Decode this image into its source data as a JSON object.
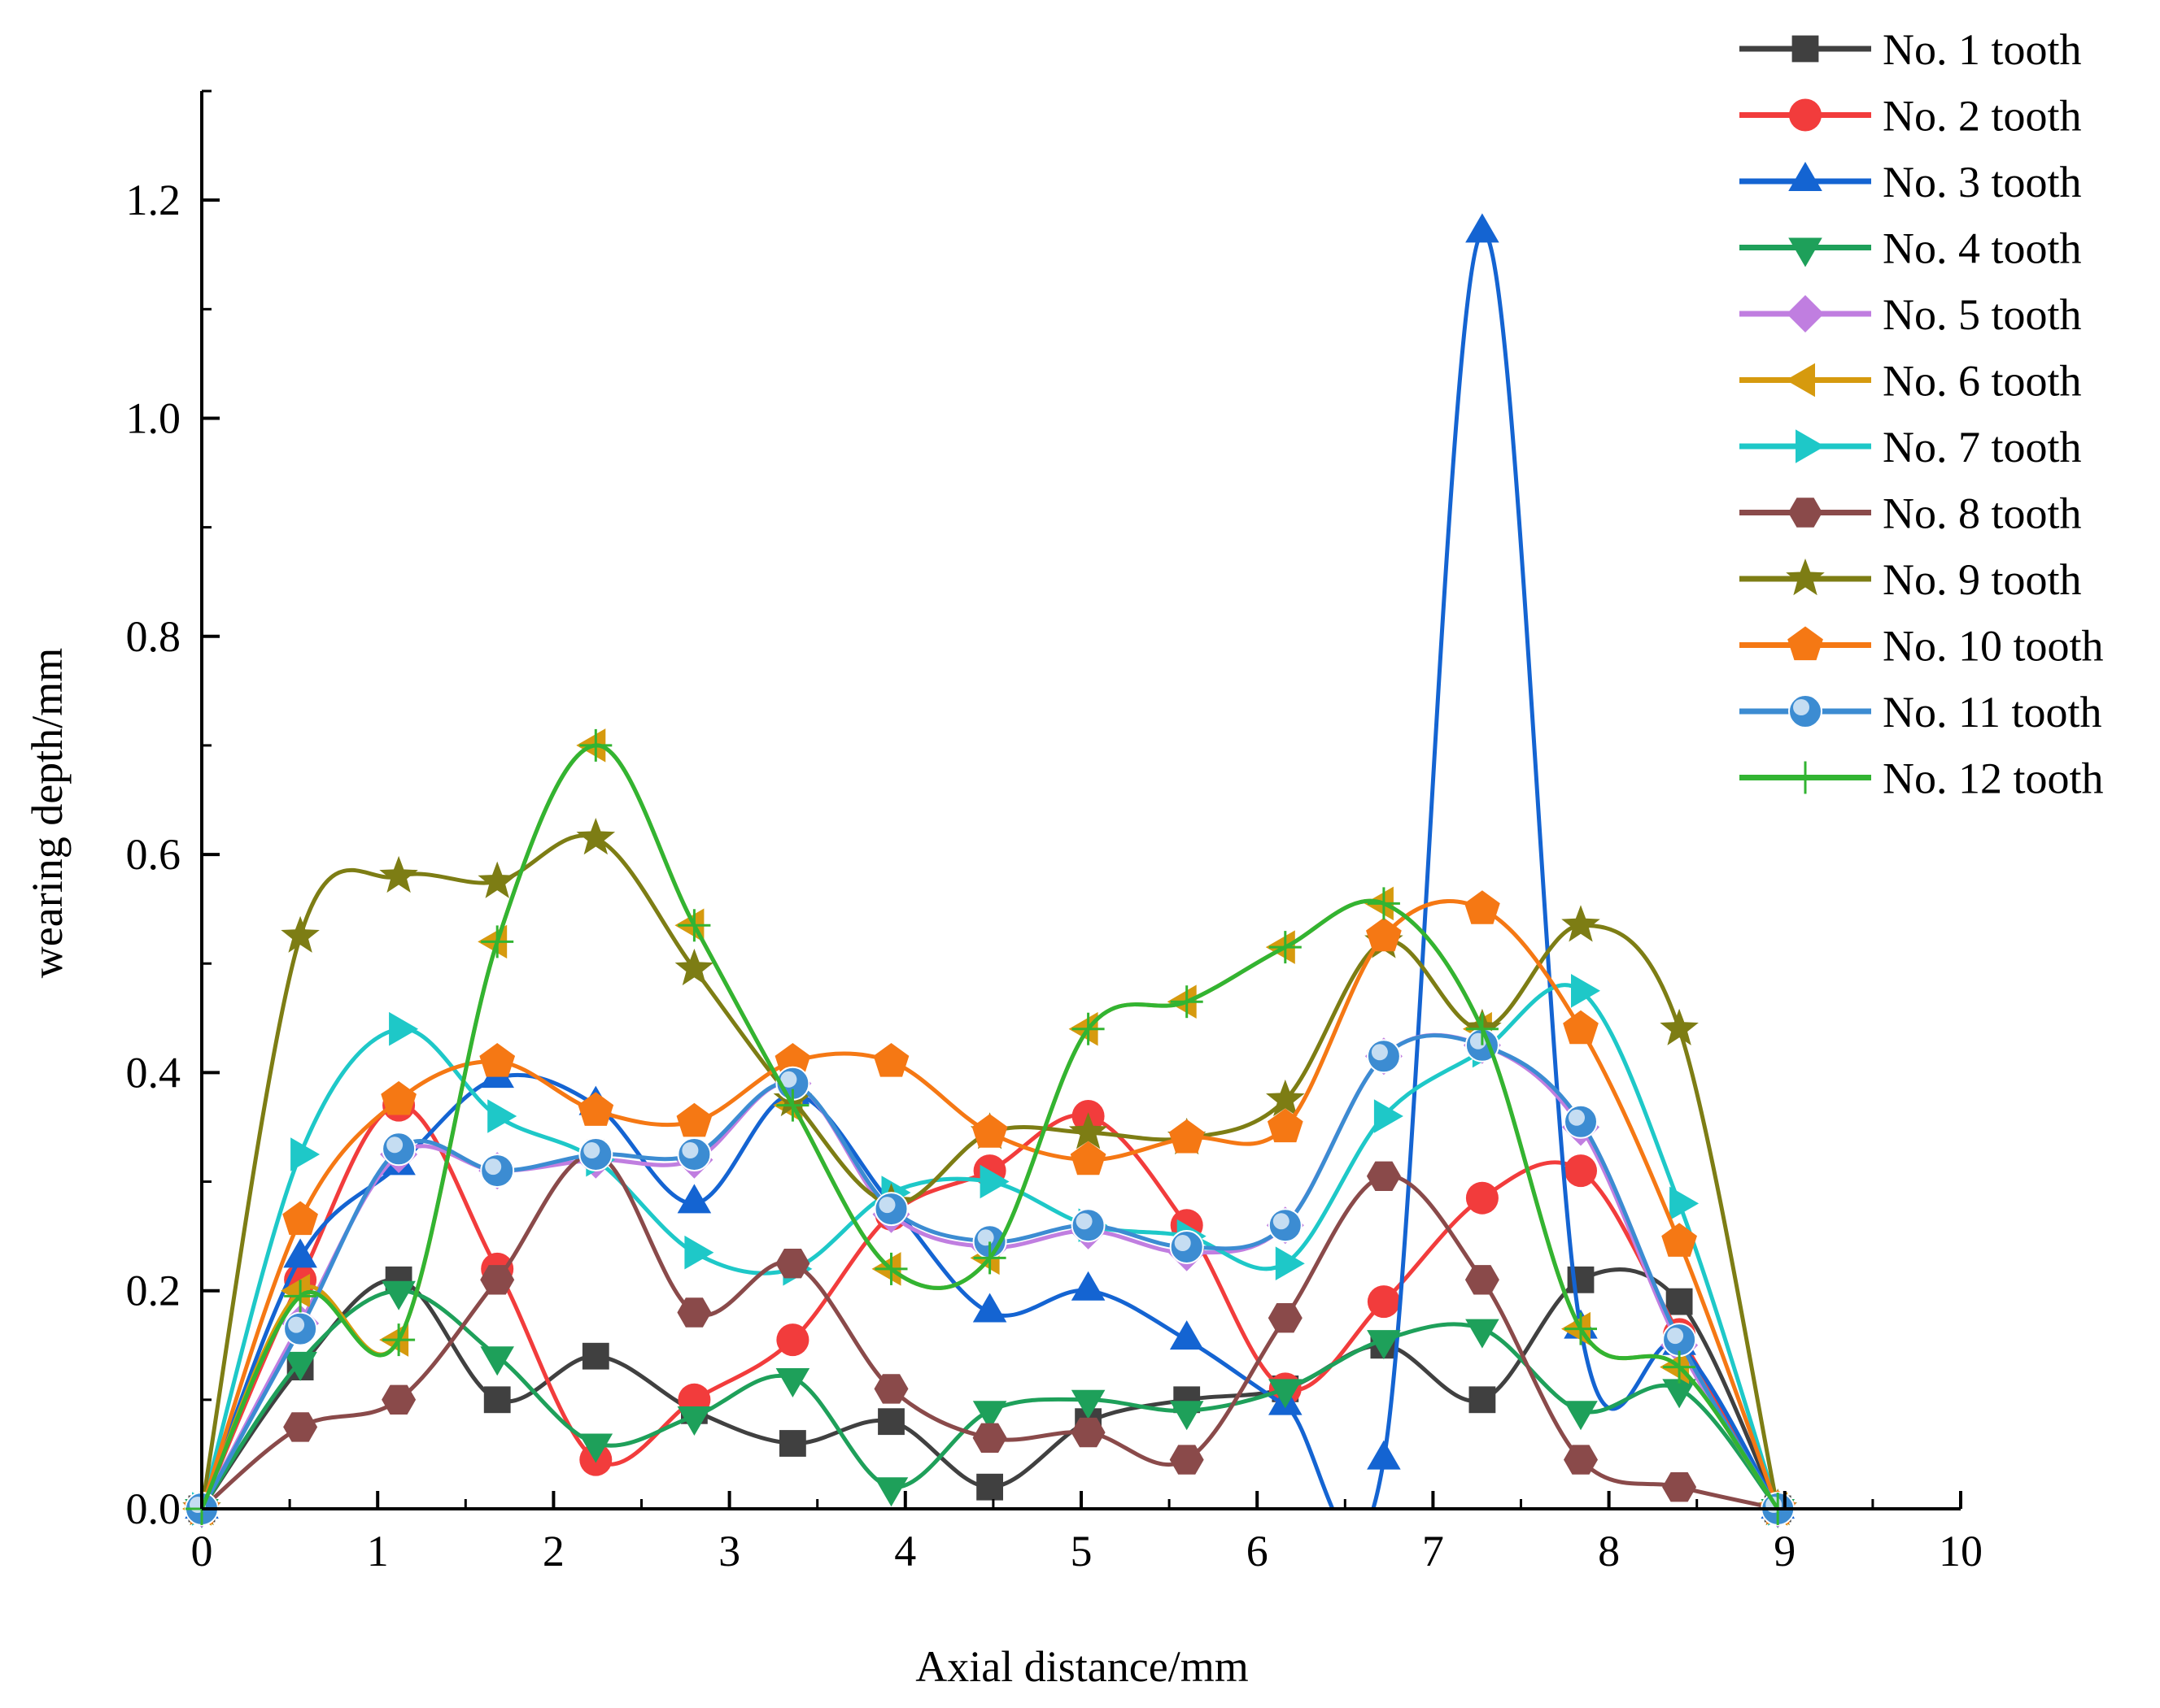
{
  "chart_data": {
    "type": "line",
    "xlabel": "Axial distance/mm",
    "ylabel": "wearing depth/mm",
    "xlim": [
      0,
      10
    ],
    "ylim": [
      0,
      1.3
    ],
    "xticks": [
      "0",
      "1",
      "2",
      "3",
      "4",
      "5",
      "6",
      "7",
      "8",
      "9",
      "10"
    ],
    "yticks": [
      "0.0",
      "0.2",
      "0.4",
      "0.6",
      "0.8",
      "1.0",
      "1.2"
    ],
    "x": [
      0,
      0.56,
      1.12,
      1.68,
      2.24,
      2.8,
      3.36,
      3.92,
      4.48,
      5.04,
      5.6,
      6.16,
      6.72,
      7.28,
      7.84,
      8.4,
      8.96
    ],
    "legend_position": "top-right",
    "series": [
      {
        "name": "No. 1 tooth",
        "color": "#404040",
        "marker": "square",
        "values": [
          0,
          0.13,
          0.21,
          0.1,
          0.14,
          0.09,
          0.06,
          0.08,
          0.02,
          0.08,
          0.1,
          0.11,
          0.15,
          0.1,
          0.21,
          0.19,
          0
        ]
      },
      {
        "name": "No. 2 tooth",
        "color": "#f23c3c",
        "marker": "circle",
        "values": [
          0,
          0.21,
          0.37,
          0.22,
          0.045,
          0.1,
          0.155,
          0.27,
          0.31,
          0.36,
          0.26,
          0.11,
          0.19,
          0.285,
          0.31,
          0.16,
          0
        ]
      },
      {
        "name": "No. 3 tooth",
        "color": "#1464d2",
        "marker": "triangle-up",
        "values": [
          0,
          0.23,
          0.315,
          0.395,
          0.37,
          0.28,
          0.38,
          0.28,
          0.18,
          0.2,
          0.155,
          0.095,
          0.045,
          1.17,
          0.165,
          0.15,
          0
        ]
      },
      {
        "name": "No. 4 tooth",
        "color": "#1ea05a",
        "marker": "triangle-down",
        "values": [
          0,
          0.135,
          0.2,
          0.14,
          0.06,
          0.085,
          0.12,
          0.02,
          0.09,
          0.1,
          0.09,
          0.11,
          0.155,
          0.165,
          0.09,
          0.11,
          0
        ]
      },
      {
        "name": "No. 5 tooth",
        "color": "#c07ee0",
        "marker": "diamond",
        "values": [
          0,
          0.17,
          0.325,
          0.31,
          0.32,
          0.32,
          0.39,
          0.27,
          0.24,
          0.255,
          0.235,
          0.26,
          0.415,
          0.425,
          0.35,
          0.15,
          0
        ]
      },
      {
        "name": "No. 6 tooth",
        "color": "#d69a0e",
        "marker": "triangle-left",
        "values": [
          0,
          0.2,
          0.155,
          0.52,
          0.7,
          0.535,
          0.37,
          0.22,
          0.23,
          0.44,
          0.465,
          0.515,
          0.555,
          0.44,
          0.165,
          0.13,
          0
        ]
      },
      {
        "name": "No. 7 tooth",
        "color": "#1ec8c8",
        "marker": "triangle-right",
        "values": [
          0,
          0.325,
          0.44,
          0.36,
          0.32,
          0.235,
          0.22,
          0.29,
          0.3,
          0.26,
          0.25,
          0.225,
          0.36,
          0.42,
          0.475,
          0.28,
          0
        ]
      },
      {
        "name": "No. 8 tooth",
        "color": "#8a4a4a",
        "marker": "hexagon",
        "values": [
          0,
          0.075,
          0.1,
          0.21,
          0.325,
          0.18,
          0.225,
          0.11,
          0.065,
          0.07,
          0.045,
          0.175,
          0.305,
          0.21,
          0.045,
          0.02,
          0
        ]
      },
      {
        "name": "No. 9 tooth",
        "color": "#7d7d14",
        "marker": "star",
        "values": [
          0,
          0.525,
          0.58,
          0.575,
          0.615,
          0.495,
          0.375,
          0.28,
          0.345,
          0.345,
          0.34,
          0.375,
          0.52,
          0.44,
          0.535,
          0.44,
          0
        ]
      },
      {
        "name": "No. 10 tooth",
        "color": "#f57814",
        "marker": "pentagon",
        "values": [
          0,
          0.265,
          0.375,
          0.41,
          0.365,
          0.355,
          0.41,
          0.41,
          0.345,
          0.32,
          0.34,
          0.35,
          0.525,
          0.55,
          0.44,
          0.245,
          0
        ]
      },
      {
        "name": "No. 11 tooth",
        "color": "#3c8cd2",
        "marker": "sphere",
        "values": [
          0,
          0.165,
          0.33,
          0.31,
          0.325,
          0.325,
          0.39,
          0.275,
          0.245,
          0.26,
          0.24,
          0.26,
          0.415,
          0.425,
          0.355,
          0.155,
          0
        ]
      },
      {
        "name": "No. 12 tooth",
        "color": "#32b432",
        "marker": "plus",
        "values": [
          0,
          0.195,
          0.155,
          0.52,
          0.7,
          0.535,
          0.37,
          0.22,
          0.23,
          0.44,
          0.465,
          0.515,
          0.555,
          0.44,
          0.165,
          0.13,
          0
        ]
      }
    ]
  }
}
